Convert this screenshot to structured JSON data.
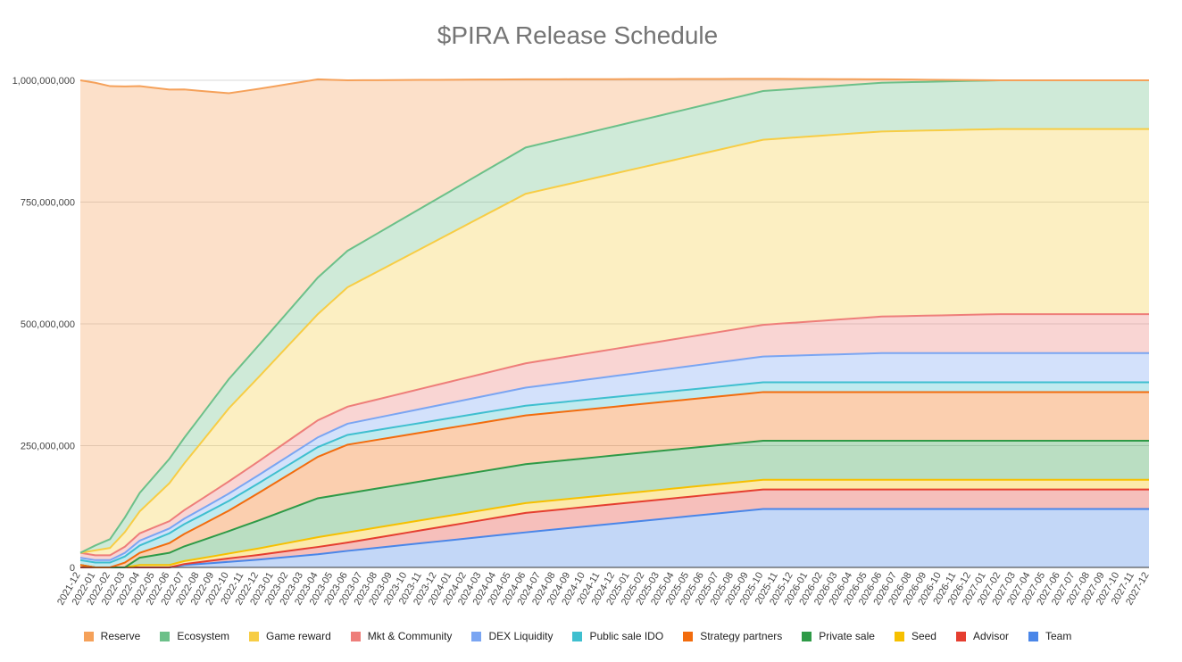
{
  "chart_data": {
    "type": "area",
    "stacked": true,
    "title": "$PIRA Release Schedule",
    "xlabel": "",
    "ylabel": "",
    "ylim": [
      0,
      1000000000
    ],
    "yticks": [
      0,
      250000000,
      500000000,
      750000000,
      1000000000
    ],
    "ytick_labels": [
      "0",
      "250,000,000",
      "500,000,000",
      "750,000,000",
      "1,000,000,000"
    ],
    "grid": true,
    "legend_position": "bottom",
    "months": {
      "start_year": 2021,
      "start_month": 12,
      "count": 73
    },
    "series": [
      {
        "name": "Team",
        "color": "#4a86e8",
        "keyframes": [
          [
            0,
            0
          ],
          [
            3,
            0
          ],
          [
            5,
            0
          ],
          [
            6,
            0
          ],
          [
            7,
            5000000
          ],
          [
            8,
            7000000
          ],
          [
            12,
            16000000
          ],
          [
            16,
            27000000
          ],
          [
            18,
            34000000
          ],
          [
            30,
            72000000
          ],
          [
            46,
            120000000
          ],
          [
            72,
            120000000
          ]
        ]
      },
      {
        "name": "Advisor",
        "color": "#e53e30",
        "keyframes": [
          [
            0,
            0
          ],
          [
            4,
            0
          ],
          [
            6,
            0
          ],
          [
            7,
            2000000
          ],
          [
            10,
            7000000
          ],
          [
            16,
            15000000
          ],
          [
            18,
            17000000
          ],
          [
            30,
            40000000
          ],
          [
            46,
            40000000
          ],
          [
            72,
            40000000
          ]
        ]
      },
      {
        "name": "Seed",
        "color": "#f6c000",
        "keyframes": [
          [
            0,
            5000000
          ],
          [
            1,
            0
          ],
          [
            3,
            0
          ],
          [
            4,
            5000000
          ],
          [
            6,
            5000000
          ],
          [
            7,
            6000000
          ],
          [
            10,
            10000000
          ],
          [
            16,
            20000000
          ],
          [
            18,
            21000000
          ],
          [
            30,
            20000000
          ],
          [
            46,
            20000000
          ],
          [
            72,
            20000000
          ]
        ]
      },
      {
        "name": "Private sale",
        "color": "#2e9a47",
        "keyframes": [
          [
            0,
            0
          ],
          [
            3,
            0
          ],
          [
            4,
            15000000
          ],
          [
            6,
            25000000
          ],
          [
            10,
            46000000
          ],
          [
            16,
            80000000
          ],
          [
            18,
            80000000
          ],
          [
            30,
            80000000
          ],
          [
            46,
            80000000
          ],
          [
            72,
            80000000
          ]
        ]
      },
      {
        "name": "Strategy partners",
        "color": "#f26c0d",
        "keyframes": [
          [
            0,
            0
          ],
          [
            2,
            0
          ],
          [
            3,
            10000000
          ],
          [
            4,
            10000000
          ],
          [
            6,
            20000000
          ],
          [
            10,
            42000000
          ],
          [
            16,
            85000000
          ],
          [
            18,
            100000000
          ],
          [
            30,
            100000000
          ],
          [
            46,
            100000000
          ],
          [
            72,
            100000000
          ]
        ]
      },
      {
        "name": "Public sale IDO",
        "color": "#3fbfcf",
        "keyframes": [
          [
            0,
            10000000
          ],
          [
            2,
            10000000
          ],
          [
            4,
            15000000
          ],
          [
            6,
            20000000
          ],
          [
            10,
            20000000
          ],
          [
            16,
            20000000
          ],
          [
            18,
            20000000
          ],
          [
            30,
            20000000
          ],
          [
            46,
            20000000
          ],
          [
            72,
            20000000
          ]
        ]
      },
      {
        "name": "DEX Liquidity",
        "color": "#7aa5f2",
        "keyframes": [
          [
            0,
            5000000
          ],
          [
            2,
            5000000
          ],
          [
            4,
            10000000
          ],
          [
            6,
            10000000
          ],
          [
            10,
            15000000
          ],
          [
            16,
            20000000
          ],
          [
            18,
            23000000
          ],
          [
            30,
            37000000
          ],
          [
            46,
            53000000
          ],
          [
            54,
            60000000
          ],
          [
            72,
            60000000
          ]
        ]
      },
      {
        "name": "Mkt & Community",
        "color": "#ee7e7a",
        "keyframes": [
          [
            0,
            10000000
          ],
          [
            2,
            10000000
          ],
          [
            4,
            15000000
          ],
          [
            6,
            15000000
          ],
          [
            10,
            25000000
          ],
          [
            16,
            35000000
          ],
          [
            18,
            35000000
          ],
          [
            30,
            50000000
          ],
          [
            46,
            65000000
          ],
          [
            54,
            75000000
          ],
          [
            62,
            80000000
          ],
          [
            72,
            80000000
          ]
        ]
      },
      {
        "name": "Game reward",
        "color": "#f7cd45",
        "keyframes": [
          [
            0,
            0
          ],
          [
            1,
            10000000
          ],
          [
            2,
            15000000
          ],
          [
            3,
            30000000
          ],
          [
            4,
            45000000
          ],
          [
            6,
            78000000
          ],
          [
            10,
            150000000
          ],
          [
            16,
            218000000
          ],
          [
            18,
            245000000
          ],
          [
            30,
            348000000
          ],
          [
            46,
            380000000
          ],
          [
            54,
            380000000
          ],
          [
            62,
            380000000
          ],
          [
            72,
            380000000
          ]
        ]
      },
      {
        "name": "Ecosystem",
        "color": "#6cc089",
        "keyframes": [
          [
            0,
            0
          ],
          [
            1,
            10000000
          ],
          [
            2,
            18000000
          ],
          [
            3,
            30000000
          ],
          [
            4,
            38000000
          ],
          [
            6,
            50000000
          ],
          [
            10,
            60000000
          ],
          [
            16,
            75000000
          ],
          [
            18,
            75000000
          ],
          [
            30,
            95000000
          ],
          [
            46,
            100000000
          ],
          [
            54,
            100000000
          ],
          [
            62,
            100000000
          ],
          [
            72,
            100000000
          ]
        ]
      },
      {
        "name": "Reserve",
        "color": "#f5a15a",
        "keyframes": [
          [
            0,
            970000000
          ],
          [
            1,
            950000000
          ],
          [
            2,
            930000000
          ],
          [
            3,
            885000000
          ],
          [
            4,
            835000000
          ],
          [
            6,
            758000000
          ],
          [
            10,
            587000000
          ],
          [
            16,
            407000000
          ],
          [
            18,
            350000000
          ],
          [
            30,
            140000000
          ],
          [
            46,
            25000000
          ],
          [
            54,
            7000000
          ],
          [
            62,
            0
          ],
          [
            72,
            0
          ]
        ]
      }
    ]
  },
  "legend": {
    "items": [
      {
        "label": "Reserve",
        "color": "#f5a15a"
      },
      {
        "label": "Ecosystem",
        "color": "#6cc089"
      },
      {
        "label": "Game reward",
        "color": "#f7cd45"
      },
      {
        "label": "Mkt & Community",
        "color": "#ee7e7a"
      },
      {
        "label": "DEX Liquidity",
        "color": "#7aa5f2"
      },
      {
        "label": "Public sale IDO",
        "color": "#3fbfcf"
      },
      {
        "label": "Strategy partners",
        "color": "#f26c0d"
      },
      {
        "label": "Private sale",
        "color": "#2e9a47"
      },
      {
        "label": "Seed",
        "color": "#f6c000"
      },
      {
        "label": "Advisor",
        "color": "#e53e30"
      },
      {
        "label": "Team",
        "color": "#4a86e8"
      }
    ]
  }
}
